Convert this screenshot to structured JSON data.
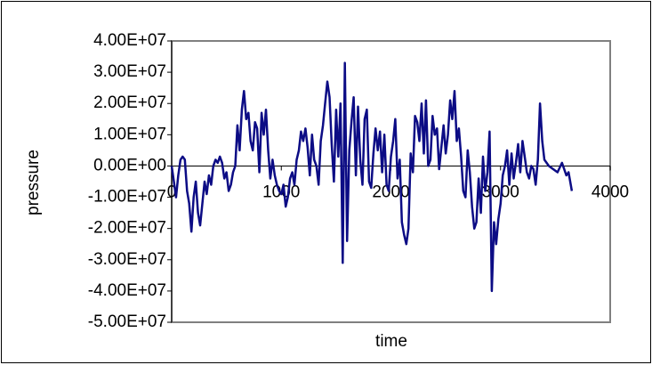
{
  "chart_data": {
    "type": "line",
    "x_label": "time",
    "y_label": "pressure",
    "xlim": [
      0,
      4000
    ],
    "xticks": [
      0,
      1000,
      2000,
      3000,
      4000
    ],
    "ylim": [
      -50000000,
      40000000
    ],
    "yticks": [
      {
        "value": -50000000,
        "label": "-5.00E+07"
      },
      {
        "value": -40000000,
        "label": "-4.00E+07"
      },
      {
        "value": -30000000,
        "label": "-3.00E+07"
      },
      {
        "value": -20000000,
        "label": "-2.00E+07"
      },
      {
        "value": -10000000,
        "label": "-1.00E+07"
      },
      {
        "value": 0,
        "label": "0.00E+00"
      },
      {
        "value": 10000000,
        "label": "1.00E+07"
      },
      {
        "value": 20000000,
        "label": "2.00E+07"
      },
      {
        "value": 30000000,
        "label": "3.00E+07"
      },
      {
        "value": 40000000,
        "label": "4.00E+07"
      }
    ],
    "color": "#0c0c85",
    "x": [
      0,
      20,
      40,
      60,
      80,
      100,
      120,
      140,
      160,
      180,
      200,
      220,
      240,
      260,
      280,
      300,
      320,
      340,
      360,
      380,
      400,
      420,
      440,
      460,
      480,
      500,
      520,
      540,
      560,
      580,
      600,
      620,
      640,
      660,
      680,
      700,
      720,
      740,
      760,
      780,
      800,
      820,
      840,
      860,
      880,
      900,
      920,
      940,
      960,
      980,
      1000,
      1020,
      1040,
      1060,
      1080,
      1100,
      1120,
      1140,
      1160,
      1180,
      1200,
      1220,
      1240,
      1260,
      1280,
      1300,
      1320,
      1340,
      1360,
      1380,
      1400,
      1420,
      1440,
      1460,
      1480,
      1500,
      1520,
      1540,
      1560,
      1580,
      1600,
      1620,
      1640,
      1660,
      1680,
      1700,
      1720,
      1740,
      1760,
      1780,
      1800,
      1820,
      1840,
      1860,
      1880,
      1900,
      1920,
      1940,
      1960,
      1980,
      2000,
      2020,
      2040,
      2060,
      2080,
      2100,
      2120,
      2140,
      2160,
      2180,
      2200,
      2220,
      2240,
      2260,
      2280,
      2300,
      2320,
      2340,
      2360,
      2380,
      2400,
      2420,
      2440,
      2460,
      2480,
      2500,
      2520,
      2540,
      2560,
      2580,
      2600,
      2620,
      2640,
      2660,
      2680,
      2700,
      2720,
      2740,
      2760,
      2780,
      2800,
      2820,
      2840,
      2860,
      2880,
      2900,
      2920,
      2940,
      2960,
      2980,
      3000,
      3020,
      3040,
      3060,
      3080,
      3100,
      3120,
      3140,
      3160,
      3180,
      3200,
      3220,
      3240,
      3260,
      3280,
      3300,
      3320,
      3340,
      3360,
      3380,
      3400,
      3440,
      3480,
      3520,
      3560,
      3600,
      3620,
      3650
    ],
    "values": [
      0,
      -5000000,
      -10000000,
      -3000000,
      2000000,
      3000000,
      2000000,
      -8000000,
      -12000000,
      -21000000,
      -10000000,
      -5000000,
      -15000000,
      -19000000,
      -12000000,
      -5000000,
      -9000000,
      -3000000,
      -6000000,
      0,
      2000000,
      1000000,
      3000000,
      1000000,
      -4000000,
      -2000000,
      -8000000,
      -6000000,
      -2000000,
      0,
      13000000,
      5000000,
      18000000,
      24000000,
      15000000,
      17000000,
      8000000,
      5000000,
      14000000,
      12000000,
      -2000000,
      17000000,
      10000000,
      18000000,
      5000000,
      -4000000,
      2000000,
      -3000000,
      -6000000,
      -8000000,
      -9000000,
      -6000000,
      -13000000,
      -10000000,
      -4000000,
      -2000000,
      -6000000,
      2000000,
      5000000,
      11000000,
      8000000,
      12000000,
      6000000,
      -3000000,
      10000000,
      2000000,
      0,
      -6000000,
      8000000,
      13000000,
      20000000,
      27000000,
      22000000,
      7000000,
      -5000000,
      18000000,
      3000000,
      20000000,
      -31000000,
      33000000,
      -24000000,
      5000000,
      14000000,
      22000000,
      -3000000,
      19000000,
      2000000,
      -6000000,
      15000000,
      18000000,
      -5000000,
      -7000000,
      4000000,
      12000000,
      5000000,
      11000000,
      -2000000,
      10000000,
      -6000000,
      -8000000,
      3000000,
      8000000,
      15000000,
      -4000000,
      2000000,
      -18000000,
      -22000000,
      -25000000,
      -20000000,
      4000000,
      -2000000,
      16000000,
      14000000,
      8000000,
      20000000,
      4000000,
      21000000,
      0,
      2000000,
      16000000,
      10000000,
      12000000,
      -1000000,
      6000000,
      13000000,
      4000000,
      10000000,
      21000000,
      15000000,
      24000000,
      8000000,
      12000000,
      3000000,
      -8000000,
      -10000000,
      5000000,
      -2000000,
      -13000000,
      -20000000,
      -18000000,
      -4000000,
      -15000000,
      3000000,
      -8000000,
      -2000000,
      11000000,
      -40000000,
      -18000000,
      -25000000,
      -17000000,
      -12000000,
      -3000000,
      0,
      5000000,
      -6000000,
      4000000,
      -4000000,
      1000000,
      7000000,
      -2000000,
      8000000,
      3000000,
      -2000000,
      -4000000,
      0,
      -1000000,
      -6000000,
      2000000,
      20000000,
      8000000,
      2000000,
      0,
      -1000000,
      -2000000,
      1000000,
      -3000000,
      -2000000,
      -8000000
    ]
  }
}
